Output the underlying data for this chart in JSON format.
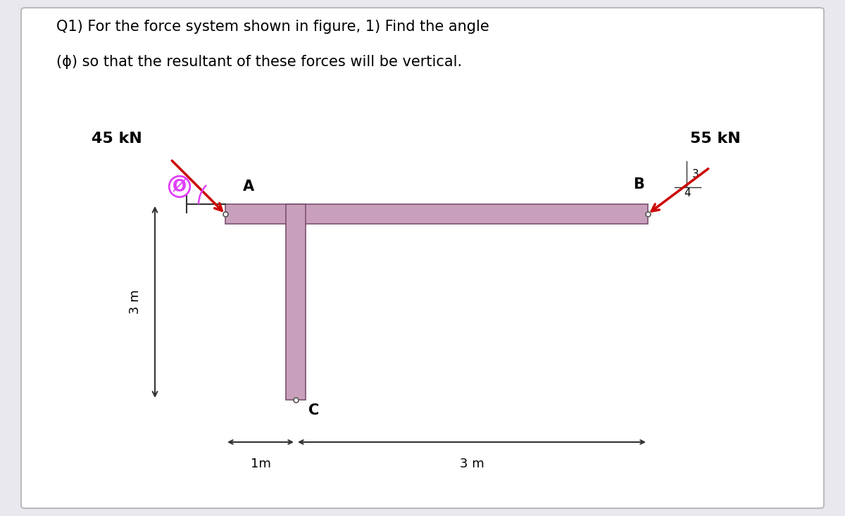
{
  "title_line1": "Q1) For the force system shown in figure, 1) Find the angle",
  "title_line2": "(ϕ) so that the resultant of these forces will be vertical.",
  "bg_color": "#e8e8ee",
  "panel_color": "#ffffff",
  "beam_color": "#c9a0bc",
  "beam_outline": "#7a5070",
  "force_arrow_color": "#cc0000",
  "phi_circle_color": "#e040fb",
  "dim_line_color": "#333333",
  "label_A": "A",
  "label_B": "B",
  "label_C": "C",
  "force_45": "45 kN",
  "force_55": "55 kN",
  "dim_3m_vert": "3 m",
  "dim_1m_horiz": "1m",
  "dim_3m_horiz": "3 m",
  "slope_3": "3",
  "slope_4": "4",
  "phi_label": "Ø"
}
